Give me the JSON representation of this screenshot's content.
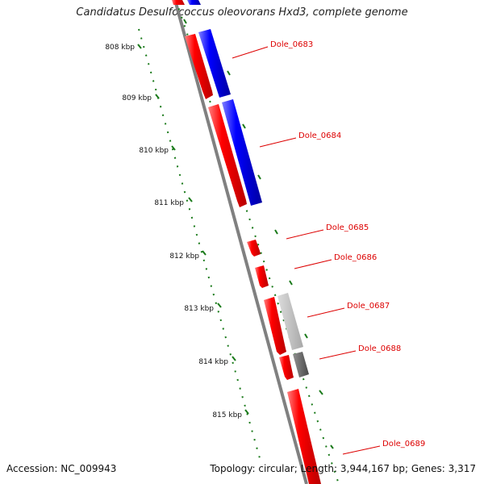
{
  "title": "Candidatus Desulfococcus oleovorans Hxd3, complete genome",
  "footer": {
    "accession": "Accession: NC_009943",
    "topology": "Topology: circular; Length: 3,944,167 bp; Genes: 3,317"
  },
  "colors": {
    "forward_gene": "#ee0000",
    "reverse_gene": "#0000ee",
    "light_gray_gene": "#b8b8b8",
    "dark_gray_gene": "#5c5c5c",
    "backbone": "#808080",
    "tick_ruler": "#1a7a1a",
    "gene_label": "#dd0000"
  },
  "scale_labels": [
    "808 kbp",
    "809 kbp",
    "810 kbp",
    "811 kbp",
    "812 kbp",
    "813 kbp",
    "814 kbp",
    "815 kbp"
  ],
  "gene_labels": [
    "Dole_0683",
    "Dole_0684",
    "Dole_0685",
    "Dole_0686",
    "Dole_0687",
    "Dole_0688",
    "Dole_0689"
  ]
}
